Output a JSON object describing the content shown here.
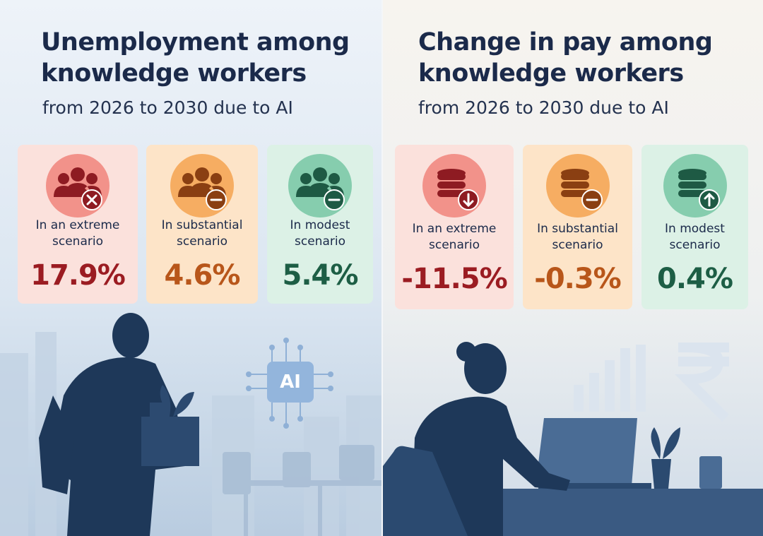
{
  "panels": [
    {
      "title": "Unemployment among knowledge workers",
      "subtitle": "from 2026 to 2030 due to AI",
      "cards": [
        {
          "label": "In an extreme scenario",
          "value": "17.9%"
        },
        {
          "label": "In substantial scenario",
          "value": "4.6%"
        },
        {
          "label": "In modest scenario",
          "value": "5.4%"
        }
      ]
    },
    {
      "title": "Change in pay among knowledge workers",
      "subtitle": "from 2026 to 2030 due to AI",
      "cards": [
        {
          "label": "In an extreme scenario",
          "value": "-11.5%"
        },
        {
          "label": "In substantial scenario",
          "value": "-0.3%"
        },
        {
          "label": "In modest scenario",
          "value": "0.4%"
        }
      ]
    }
  ],
  "illustration": {
    "chip_label": "AI"
  }
}
